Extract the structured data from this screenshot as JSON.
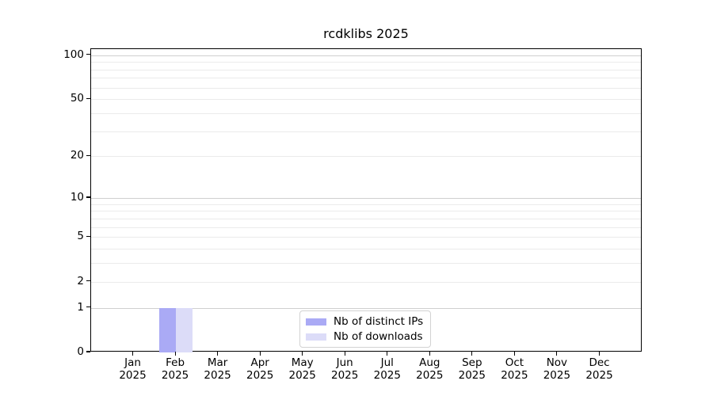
{
  "window": {
    "title": "rcdklibs 2025"
  },
  "chart_data": {
    "type": "bar",
    "title": "rcdklibs 2025",
    "categories": [
      "Jan",
      "Feb",
      "Mar",
      "Apr",
      "May",
      "Jun",
      "Jul",
      "Aug",
      "Sep",
      "Oct",
      "Nov",
      "Dec"
    ],
    "year_label": "2025",
    "series": [
      {
        "name": "Nb of distinct IPs",
        "color": "#aaaaf5",
        "values": [
          0,
          1,
          0,
          0,
          0,
          0,
          0,
          0,
          0,
          0,
          0,
          0
        ]
      },
      {
        "name": "Nb of downloads",
        "color": "#dcdcf8",
        "values": [
          0,
          1,
          0,
          0,
          0,
          0,
          0,
          0,
          0,
          0,
          0,
          0
        ]
      }
    ],
    "y_scale": "log1p",
    "ylim": [
      0,
      110
    ],
    "y_ticks": [
      0,
      1,
      2,
      5,
      10,
      20,
      50,
      100
    ],
    "y_gridlines_major": [
      1,
      10,
      100
    ],
    "y_gridlines_minor": [
      2,
      3,
      4,
      5,
      6,
      7,
      8,
      9,
      20,
      30,
      40,
      50,
      60,
      70,
      80,
      90
    ],
    "x_pad_units": 1,
    "bar_width_units": 0.4,
    "grid": true,
    "legend_position": "bottom-center",
    "colors": {
      "axis": "#000000",
      "grid_major": "#cfcfcf",
      "grid_minor": "#ebebeb",
      "legend_border": "#d2d2d2",
      "background": "#ffffff"
    }
  }
}
